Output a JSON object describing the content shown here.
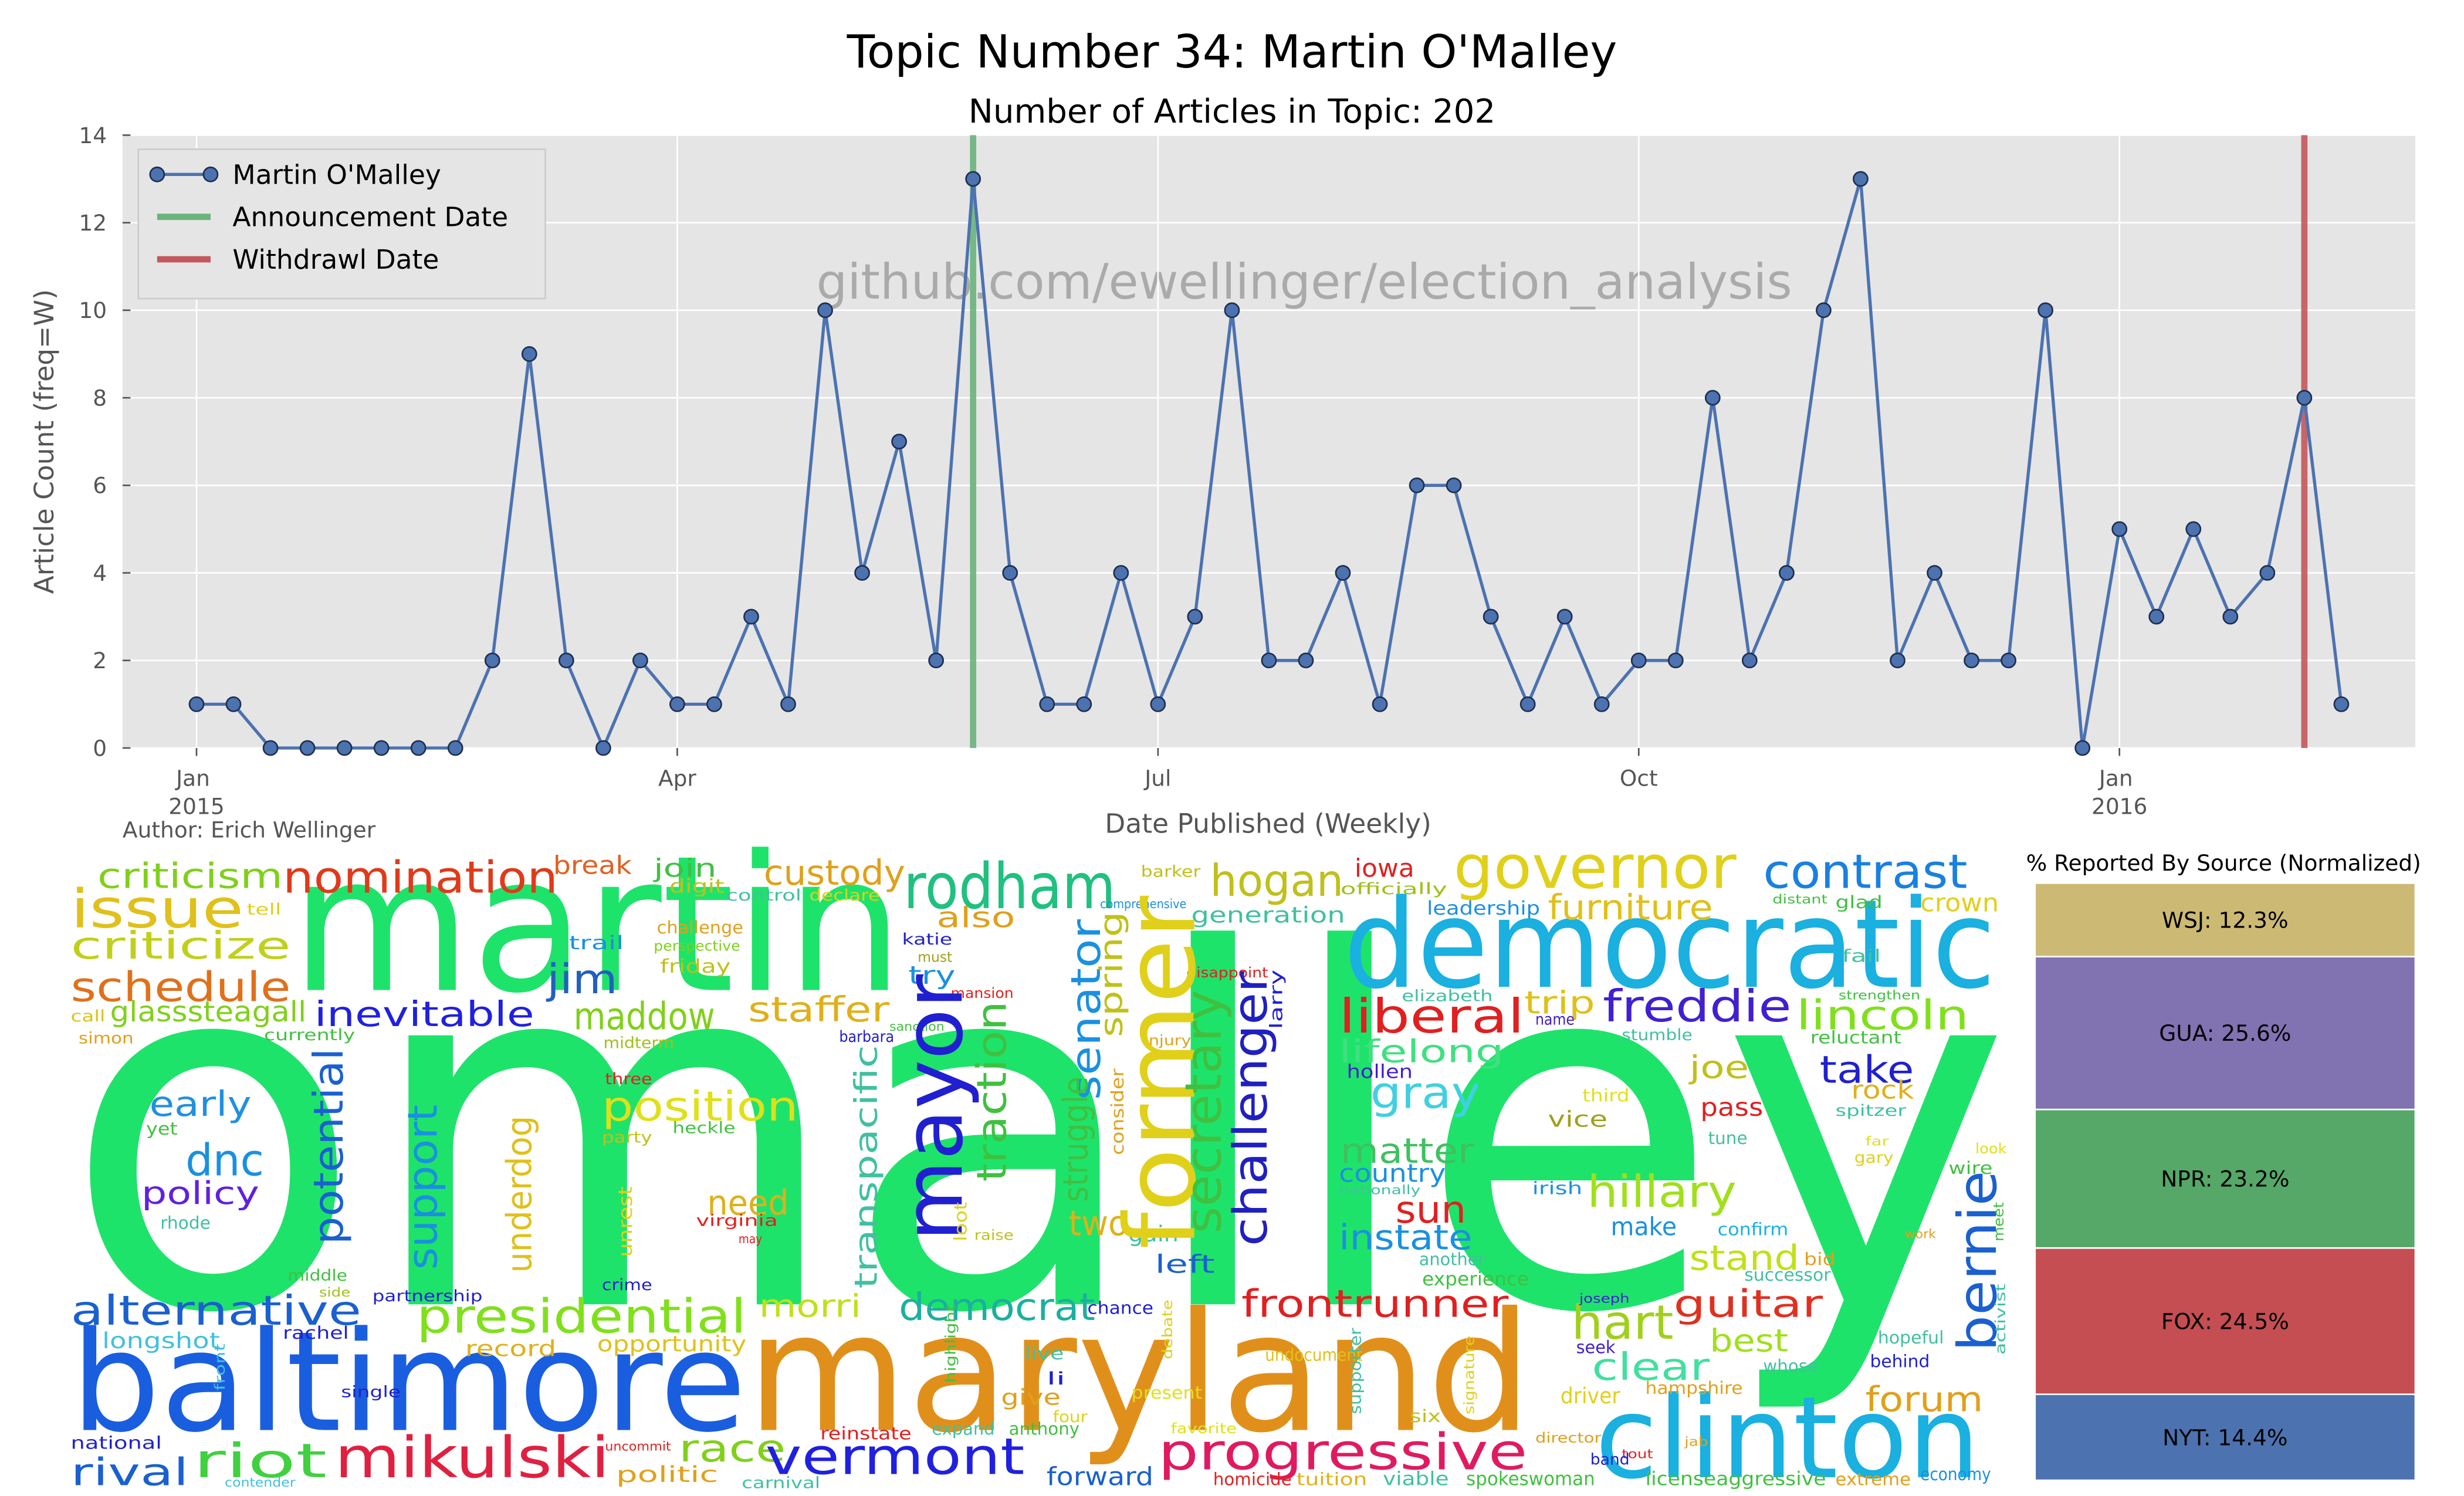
{
  "chart_data": [
    {
      "type": "line",
      "title": "Topic Number 34: Martin O'Malley",
      "subtitle": "Number of Articles in Topic: 202",
      "watermark": "github.com/ewellinger/election_analysis",
      "author": "Author: Erich Wellinger",
      "xlabel": "Date Published (Weekly)",
      "ylabel": "Article Count (freq=W)",
      "categories": [
        "Jan 2015",
        null,
        null,
        null,
        null,
        null,
        null,
        null,
        null,
        null,
        null,
        null,
        null,
        "Apr",
        null,
        null,
        null,
        null,
        null,
        null,
        null,
        null,
        null,
        null,
        null,
        null,
        "Jul",
        null,
        null,
        null,
        null,
        null,
        null,
        null,
        null,
        null,
        null,
        null,
        null,
        "Oct",
        null,
        null,
        null,
        null,
        null,
        null,
        null,
        null,
        null,
        null,
        null,
        null,
        "Jan 2016",
        null,
        null,
        null,
        null,
        null,
        null
      ],
      "series": [
        {
          "name": "Martin O'Malley",
          "color": "#4c72b0",
          "values": [
            1,
            1,
            0,
            0,
            0,
            0,
            0,
            0,
            2,
            9,
            2,
            0,
            2,
            1,
            1,
            3,
            1,
            10,
            4,
            7,
            2,
            13,
            4,
            1,
            1,
            4,
            1,
            3,
            10,
            2,
            2,
            4,
            1,
            6,
            6,
            3,
            1,
            3,
            1,
            2,
            2,
            8,
            2,
            4,
            10,
            13,
            2,
            4,
            2,
            2,
            10,
            0,
            5,
            3,
            5,
            3,
            4,
            8,
            1
          ]
        }
      ],
      "vlines": [
        {
          "name": "Announcement Date",
          "color": "#6ab47b",
          "index": 21
        },
        {
          "name": "Withdrawl Date",
          "color": "#c4585c",
          "index": 57
        }
      ],
      "xlim": [
        -2,
        60
      ],
      "ylim": [
        0,
        14
      ],
      "yticks": [
        0,
        2,
        4,
        6,
        8,
        10,
        12,
        14
      ],
      "grid": true,
      "legend": "upper left"
    },
    {
      "type": "stacked_bar",
      "title": "% Reported By Source (Normalized)",
      "series": [
        {
          "color": "#4c72b0",
          "values": [
            14.4
          ],
          "value_labels": [
            "NYT: 14.4%"
          ]
        },
        {
          "color": "#c44e52",
          "values": [
            24.5
          ],
          "value_labels": [
            "FOX: 24.5%"
          ]
        },
        {
          "color": "#55a868",
          "values": [
            23.2
          ],
          "value_labels": [
            "NPR: 23.2%"
          ]
        },
        {
          "color": "#8172b2",
          "values": [
            25.6
          ],
          "value_labels": [
            "GUA: 25.6%"
          ]
        },
        {
          "color": "#ccb974",
          "values": [
            12.3
          ],
          "value_labels": [
            "WSJ: 12.3%"
          ]
        }
      ],
      "ylim": [
        0,
        100
      ]
    }
  ],
  "word_cloud": {
    "words": [
      "omalley",
      "martin",
      "democratic",
      "baltimore",
      "maryland",
      "clinton",
      "rodham",
      "governor",
      "contrast",
      "nomination",
      "criticism",
      "issue",
      "criticize",
      "schedule",
      "custody",
      "hogan",
      "iowa",
      "furniture",
      "crown",
      "also",
      "break",
      "join",
      "inevitable",
      "jim",
      "maddow",
      "staffer",
      "liberal",
      "freddie",
      "lincoln",
      "trip",
      "lifelong",
      "gray",
      "early",
      "dnc",
      "policy",
      "position",
      "need",
      "two",
      "matter",
      "country",
      "hillary",
      "take",
      "joe",
      "sun",
      "instate",
      "make",
      "stand",
      "alternative",
      "presidential",
      "morri",
      "democrat",
      "frontrunner",
      "hart",
      "guitar",
      "best",
      "clear",
      "forum",
      "riot",
      "mikulski",
      "rival",
      "race",
      "vermont",
      "progressive",
      "forward",
      "left",
      "tell",
      "call",
      "glasssteagall",
      "simon",
      "currently",
      "trail",
      "digit",
      "control",
      "declare",
      "challenge",
      "perspective",
      "friday",
      "must",
      "katie",
      "try",
      "barker",
      "comprehensive",
      "generation",
      "officially",
      "leadership",
      "distant",
      "glad",
      "fail",
      "strengthen",
      "reluctant",
      "elizabeth",
      "disappoint",
      "name",
      "stumble",
      "barbara",
      "sanction",
      "midterm",
      "mansion",
      "injury",
      "hollen",
      "three",
      "heckle",
      "party",
      "yet",
      "rhode",
      "third",
      "pass",
      "rock",
      "spitzer",
      "vice",
      "tune",
      "far",
      "gary",
      "look",
      "wire",
      "irish",
      "confirm",
      "nationally",
      "virginia",
      "may",
      "raise",
      "gain",
      "experience",
      "another",
      "bid",
      "whose",
      "successor",
      "work",
      "joseph",
      "seek",
      "driver",
      "hampshire",
      "hopeful",
      "behind",
      "live",
      "li",
      "give",
      "four",
      "present",
      "favorite",
      "undocument",
      "spokeswoman",
      "viable",
      "tuition",
      "homicide",
      "carnival",
      "expand",
      "anthony",
      "reinstate",
      "politic",
      "uncommit",
      "opportunity",
      "record",
      "crime",
      "partnership",
      "middle",
      "side",
      "rachel",
      "longshot",
      "national",
      "contender",
      "single",
      "director",
      "tout",
      "jab",
      "licenseaggressive",
      "extreme",
      "economy",
      "band",
      "six",
      "chance",
      "mayor",
      "former",
      "senator",
      "spring",
      "struggle",
      "consider",
      "secretary",
      "challenger",
      "potential",
      "support",
      "underdog",
      "transpacific",
      "traction",
      "bernie",
      "larry",
      "unrest",
      "loot",
      "front",
      "signature",
      "supporter",
      "debate",
      "highlight",
      "activist",
      "meet"
    ]
  }
}
